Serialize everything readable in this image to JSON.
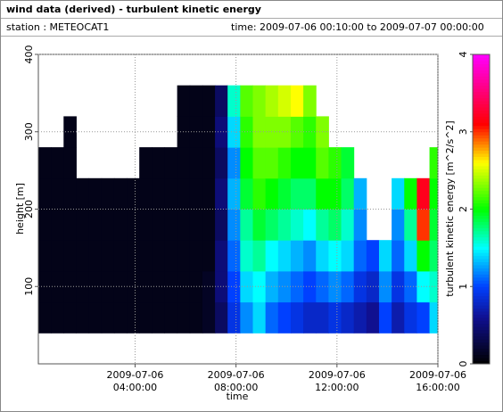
{
  "header": {
    "title": "wind data (derived) - turbulent kinetic energy",
    "station": "station : METEOCAT1",
    "period": "time: 2009-07-06 00:10:00 to 2009-07-07 00:00:00"
  },
  "chart_data": {
    "type": "heatmap",
    "x_label": "time",
    "y_label": "height [m]",
    "colorbar_label": "turbulent kinetic energy [m^2/s^2]",
    "x": [
      "2009-07-06 00:10:00",
      "2009-07-06 00:40:00",
      "2009-07-06 01:10:00",
      "2009-07-06 01:40:00",
      "2009-07-06 02:10:00",
      "2009-07-06 02:40:00",
      "2009-07-06 03:10:00",
      "2009-07-06 03:40:00",
      "2009-07-06 04:10:00",
      "2009-07-06 04:40:00",
      "2009-07-06 05:10:00",
      "2009-07-06 05:40:00",
      "2009-07-06 06:10:00",
      "2009-07-06 06:40:00",
      "2009-07-06 07:10:00",
      "2009-07-06 07:40:00",
      "2009-07-06 08:10:00",
      "2009-07-06 08:40:00",
      "2009-07-06 09:10:00",
      "2009-07-06 09:40:00",
      "2009-07-06 10:10:00",
      "2009-07-06 10:40:00",
      "2009-07-06 11:10:00",
      "2009-07-06 11:40:00",
      "2009-07-06 12:10:00",
      "2009-07-06 12:40:00",
      "2009-07-06 13:10:00",
      "2009-07-06 13:40:00",
      "2009-07-06 14:10:00",
      "2009-07-06 14:40:00",
      "2009-07-06 15:10:00",
      "2009-07-06 15:40:00"
    ],
    "y_edges": [
      40,
      80,
      120,
      160,
      200,
      240,
      280,
      320,
      360
    ],
    "values": [
      [
        0.1,
        0.1,
        0.1,
        0.1,
        0.1,
        0.1,
        null,
        null
      ],
      [
        0.1,
        0.1,
        0.1,
        0.1,
        0.1,
        0.1,
        null,
        null
      ],
      [
        0.1,
        0.1,
        0.1,
        0.1,
        0.1,
        0.1,
        0.1,
        null
      ],
      [
        0.1,
        0.1,
        0.1,
        0.1,
        0.1,
        null,
        null,
        null
      ],
      [
        0.1,
        0.1,
        0.1,
        0.1,
        0.1,
        null,
        null,
        null
      ],
      [
        0.1,
        0.1,
        0.1,
        0.1,
        0.1,
        null,
        null,
        null
      ],
      [
        0.1,
        0.1,
        0.1,
        0.1,
        0.1,
        null,
        null,
        null
      ],
      [
        0.1,
        0.1,
        0.1,
        0.1,
        0.1,
        null,
        null,
        null
      ],
      [
        0.1,
        0.1,
        0.1,
        0.1,
        0.1,
        0.1,
        null,
        null
      ],
      [
        0.1,
        0.1,
        0.1,
        0.1,
        0.1,
        0.1,
        null,
        null
      ],
      [
        0.1,
        0.1,
        0.1,
        0.1,
        0.1,
        0.1,
        null,
        null
      ],
      [
        0.1,
        0.1,
        0.1,
        0.1,
        0.1,
        0.1,
        0.1,
        0.1
      ],
      [
        0.1,
        0.1,
        0.1,
        0.1,
        0.1,
        0.1,
        0.1,
        0.1
      ],
      [
        0.15,
        0.15,
        0.1,
        0.1,
        0.1,
        0.1,
        0.1,
        0.1
      ],
      [
        0.4,
        0.5,
        0.5,
        0.4,
        0.5,
        0.4,
        0.5,
        0.4
      ],
      [
        0.9,
        1.0,
        1.1,
        1.2,
        1.3,
        1.2,
        1.4,
        1.6
      ],
      [
        1.2,
        1.4,
        1.6,
        1.7,
        1.9,
        2.0,
        2.1,
        2.2
      ],
      [
        1.4,
        1.5,
        1.7,
        1.9,
        2.1,
        2.2,
        2.3,
        2.3
      ],
      [
        1.1,
        1.3,
        1.5,
        1.8,
        2.0,
        2.2,
        2.3,
        2.4
      ],
      [
        1.0,
        1.2,
        1.4,
        1.7,
        1.9,
        2.1,
        2.3,
        2.5
      ],
      [
        0.9,
        1.1,
        1.3,
        1.6,
        1.8,
        2.0,
        2.2,
        2.6
      ],
      [
        0.8,
        1.0,
        1.2,
        1.5,
        1.8,
        2.0,
        2.1,
        2.3
      ],
      [
        0.8,
        1.1,
        1.4,
        1.7,
        2.0,
        2.2,
        2.3,
        null
      ],
      [
        0.9,
        1.2,
        1.5,
        1.8,
        2.0,
        2.1,
        null,
        null
      ],
      [
        0.8,
        1.1,
        1.4,
        1.6,
        1.8,
        1.9,
        null,
        null
      ],
      [
        0.7,
        0.9,
        1.1,
        1.2,
        1.3,
        null,
        null,
        null
      ],
      [
        0.6,
        0.8,
        1.0,
        null,
        null,
        null,
        null,
        null
      ],
      [
        1.0,
        1.2,
        1.4,
        null,
        null,
        null,
        null,
        null
      ],
      [
        0.7,
        0.9,
        1.1,
        1.2,
        1.4,
        null,
        null,
        null
      ],
      [
        0.9,
        1.1,
        1.4,
        1.7,
        2.0,
        null,
        null,
        null
      ],
      [
        1.0,
        1.5,
        2.0,
        3.0,
        3.2,
        null,
        null,
        null
      ],
      [
        1.4,
        1.6,
        1.8,
        1.9,
        2.0,
        2.1,
        null,
        null
      ]
    ],
    "xlim": [
      "2009-07-06 00:10:00",
      "2009-07-06 16:00:00"
    ],
    "xticks": [
      "2009-07-06 04:00:00",
      "2009-07-06 08:00:00",
      "2009-07-06 12:00:00",
      "2009-07-06 16:00:00"
    ],
    "ylim": [
      0,
      400
    ],
    "yticks": [
      100,
      200,
      300,
      400
    ],
    "zlim": [
      0,
      4
    ],
    "zticks": [
      0,
      1,
      2,
      3,
      4
    ],
    "colorscale": [
      [
        0,
        "#000000"
      ],
      [
        0.6,
        "#101090"
      ],
      [
        1.0,
        "#0040ff"
      ],
      [
        1.5,
        "#00ffff"
      ],
      [
        2.0,
        "#00ff00"
      ],
      [
        2.6,
        "#ffff00"
      ],
      [
        3.1,
        "#ff0000"
      ],
      [
        4,
        "#ff00ff"
      ]
    ],
    "grid": true
  }
}
